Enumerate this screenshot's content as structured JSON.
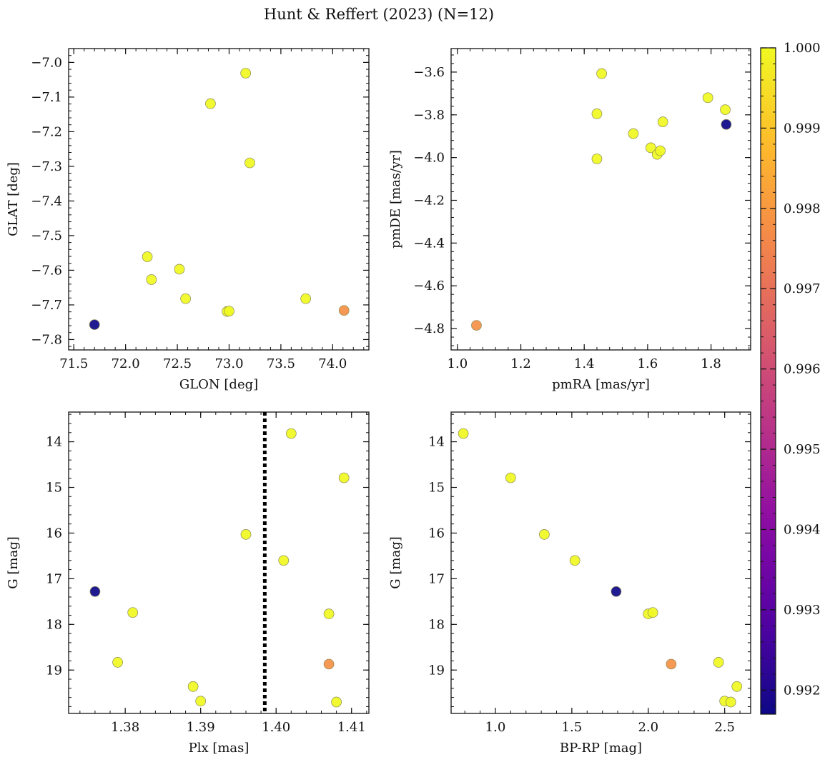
{
  "title": "Hunt & Reffert (2023) (N=12)",
  "colorbar": {
    "colormap": "plasma",
    "range": [
      0.9917,
      1.0
    ],
    "ticks": [
      "0.992",
      "0.993",
      "0.994",
      "0.995",
      "0.996",
      "0.997",
      "0.998",
      "0.999",
      "1.000"
    ],
    "tick_values": [
      0.992,
      0.993,
      0.994,
      0.995,
      0.996,
      0.997,
      0.998,
      0.999,
      1.0
    ]
  },
  "chart_data": [
    {
      "type": "scatter",
      "id": "glon-glat",
      "xlabel": "GLON [deg]",
      "ylabel": "GLAT [deg]",
      "xlim": [
        71.45,
        74.35
      ],
      "ylim": [
        -7.83,
        -6.96
      ],
      "yinvert": false,
      "xticks": [
        71.5,
        72.0,
        72.5,
        73.0,
        73.5,
        74.0
      ],
      "xtick_labels": [
        "71.5",
        "72.0",
        "72.5",
        "73.0",
        "73.5",
        "74.0"
      ],
      "yticks": [
        -7.0,
        -7.1,
        -7.2,
        -7.3,
        -7.4,
        -7.5,
        -7.6,
        -7.7,
        -7.8
      ],
      "ytick_labels": [
        "−7.0",
        "−7.1",
        "−7.2",
        "−7.3",
        "−7.4",
        "−7.5",
        "−7.6",
        "−7.7",
        "−7.8"
      ],
      "x": [
        71.7,
        72.21,
        72.25,
        72.52,
        72.58,
        72.82,
        72.98,
        73.0,
        73.16,
        73.2,
        73.74,
        74.11
      ],
      "y": [
        -7.757,
        -7.561,
        -7.627,
        -7.597,
        -7.682,
        -7.119,
        -7.719,
        -7.718,
        -7.031,
        -7.29,
        -7.682,
        -7.716
      ],
      "prob": [
        0.9917,
        1.0,
        1.0,
        1.0,
        1.0,
        1.0,
        1.0,
        1.0,
        1.0,
        1.0,
        1.0,
        0.9978
      ]
    },
    {
      "type": "scatter",
      "id": "pm",
      "xlabel": "pmRA [mas/yr]",
      "ylabel": "pmDE [mas/yr]",
      "xlim": [
        0.98,
        1.925
      ],
      "ylim": [
        -4.9,
        -3.49
      ],
      "yinvert": false,
      "xticks": [
        1.0,
        1.2,
        1.4,
        1.6,
        1.8
      ],
      "xtick_labels": [
        "1.0",
        "1.2",
        "1.4",
        "1.6",
        "1.8"
      ],
      "yticks": [
        -3.6,
        -3.8,
        -4.0,
        -4.2,
        -4.4,
        -4.6,
        -4.8
      ],
      "ytick_labels": [
        "−3.6",
        "−3.8",
        "−4.0",
        "−4.2",
        "−4.4",
        "−4.6",
        "−4.8"
      ],
      "x": [
        1.06,
        1.44,
        1.44,
        1.455,
        1.555,
        1.61,
        1.63,
        1.64,
        1.648,
        1.79,
        1.845,
        1.848
      ],
      "y": [
        -4.785,
        -4.006,
        -3.795,
        -3.607,
        -3.888,
        -3.954,
        -3.985,
        -3.968,
        -3.833,
        -3.72,
        -3.776,
        -3.845
      ],
      "prob": [
        0.9978,
        1.0,
        1.0,
        1.0,
        1.0,
        1.0,
        1.0,
        1.0,
        1.0,
        1.0,
        1.0,
        0.9917
      ]
    },
    {
      "type": "scatter",
      "id": "plx-g",
      "xlabel": "Plx [mas]",
      "ylabel": "G [mag]",
      "xlim": [
        1.3725,
        1.4123
      ],
      "ylim": [
        19.95,
        13.35
      ],
      "yinvert": true,
      "xticks": [
        1.38,
        1.39,
        1.4,
        1.41
      ],
      "xtick_labels": [
        "1.38",
        "1.39",
        "1.40",
        "1.41"
      ],
      "yticks": [
        14,
        15,
        16,
        17,
        18,
        19
      ],
      "ytick_labels": [
        "14",
        "15",
        "16",
        "17",
        "18",
        "19"
      ],
      "vline": 1.3985,
      "x": [
        1.376,
        1.379,
        1.381,
        1.389,
        1.39,
        1.396,
        1.401,
        1.402,
        1.407,
        1.407,
        1.408,
        1.409
      ],
      "y": [
        17.28,
        18.83,
        17.74,
        19.36,
        19.68,
        16.03,
        16.6,
        13.82,
        17.77,
        18.87,
        19.7,
        14.79
      ],
      "prob": [
        0.9917,
        1.0,
        1.0,
        1.0,
        1.0,
        1.0,
        1.0,
        1.0,
        1.0,
        0.9978,
        1.0,
        1.0
      ]
    },
    {
      "type": "scatter",
      "id": "cmd",
      "xlabel": "BP-RP [mag]",
      "ylabel": "G [mag]",
      "xlim": [
        0.71,
        2.67
      ],
      "ylim": [
        19.95,
        13.35
      ],
      "yinvert": true,
      "xticks": [
        1.0,
        1.5,
        2.0,
        2.5
      ],
      "xtick_labels": [
        "1.0",
        "1.5",
        "2.0",
        "2.5"
      ],
      "yticks": [
        14,
        15,
        16,
        17,
        18,
        19
      ],
      "ytick_labels": [
        "14",
        "15",
        "16",
        "17",
        "18",
        "19"
      ],
      "x": [
        0.79,
        1.1,
        1.32,
        1.52,
        1.79,
        2.0,
        2.03,
        2.15,
        2.46,
        2.5,
        2.54,
        2.58
      ],
      "y": [
        13.82,
        14.79,
        16.03,
        16.6,
        17.28,
        17.77,
        17.74,
        18.87,
        18.83,
        19.68,
        19.7,
        19.36
      ],
      "prob": [
        1.0,
        1.0,
        1.0,
        1.0,
        0.9917,
        1.0,
        1.0,
        0.9978,
        1.0,
        1.0,
        1.0,
        1.0
      ]
    }
  ]
}
